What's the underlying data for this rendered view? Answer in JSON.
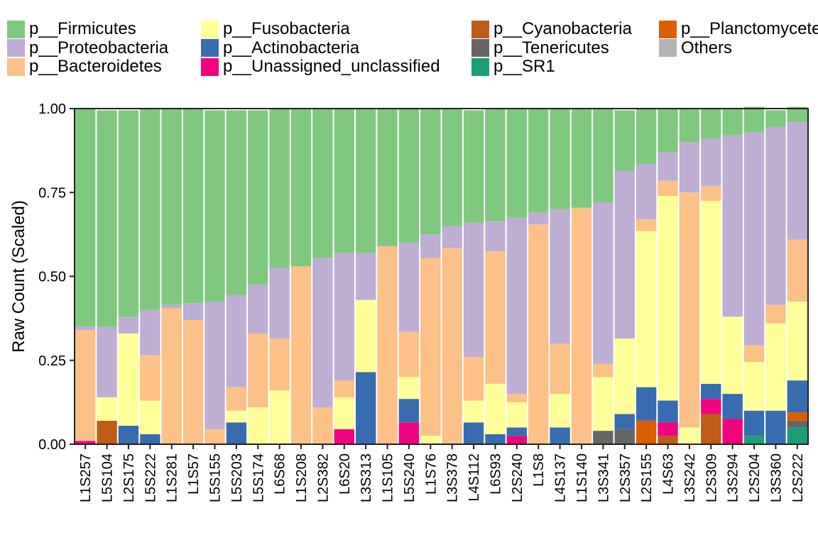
{
  "chart_data": {
    "type": "bar",
    "stacked": true,
    "title": "",
    "xlabel": "",
    "ylabel": "Raw Count (Scaled)",
    "ylim": [
      0,
      1
    ],
    "y_ticks": [
      "0.00",
      "0.25",
      "0.50",
      "0.75",
      "1.00"
    ],
    "grid": false,
    "legend_position": "top",
    "categories": [
      "L1S257",
      "L5S104",
      "L2S175",
      "L5S222",
      "L1S281",
      "L1S57",
      "L5S155",
      "L5S203",
      "L5S174",
      "L6S68",
      "L1S208",
      "L2S382",
      "L6S20",
      "L3S313",
      "L1S105",
      "L5S240",
      "L1S76",
      "L3S378",
      "L4S112",
      "L6S93",
      "L2S240",
      "L1S8",
      "L4S137",
      "L1S140",
      "L3S341",
      "L2S357",
      "L2S155",
      "L4S63",
      "L3S242",
      "L2S309",
      "L3S294",
      "L2S204",
      "L3S360",
      "L2S222"
    ],
    "series": [
      {
        "name": "p__Firmicutes",
        "color": "#7fc97f",
        "values": [
          0.65,
          0.645,
          0.615,
          0.6,
          0.585,
          0.58,
          0.57,
          0.55,
          0.52,
          0.475,
          0.47,
          0.445,
          0.43,
          0.43,
          0.41,
          0.4,
          0.375,
          0.35,
          0.335,
          0.335,
          0.325,
          0.31,
          0.3,
          0.295,
          0.28,
          0.18,
          0.165,
          0.13,
          0.1,
          0.09,
          0.08,
          0.075,
          0.05,
          0.045
        ]
      },
      {
        "name": "p__Proteobacteria",
        "color": "#beaed4",
        "values": [
          0.01,
          0.21,
          0.05,
          0.135,
          0.01,
          0.05,
          0.38,
          0.275,
          0.145,
          0.21,
          0,
          0.445,
          0.38,
          0.14,
          0,
          0.265,
          0.07,
          0.065,
          0.4,
          0.09,
          0.525,
          0.035,
          0.4,
          0,
          0.48,
          0.5,
          0.165,
          0.085,
          0.15,
          0.14,
          0.54,
          0.635,
          0.53,
          0.35
        ]
      },
      {
        "name": "p__Bacteroidetes",
        "color": "#fdc086",
        "values": [
          0.33,
          0,
          0,
          0.135,
          0.405,
          0.37,
          0.045,
          0.07,
          0.22,
          0.155,
          0.53,
          0.11,
          0.05,
          0,
          0.59,
          0.135,
          0.53,
          0.585,
          0.13,
          0.395,
          0.025,
          0.655,
          0.15,
          0.705,
          0.04,
          0,
          0.035,
          0.045,
          0.7,
          0.045,
          0,
          0.05,
          0.055,
          0.185
        ]
      },
      {
        "name": "p__Fusobacteria",
        "color": "#ffff99",
        "values": [
          0,
          0.07,
          0.275,
          0.1,
          0,
          0,
          0,
          0.035,
          0.11,
          0.16,
          0,
          0,
          0.095,
          0.215,
          0,
          0.065,
          0.025,
          0,
          0.065,
          0.15,
          0.075,
          0,
          0.1,
          0,
          0.16,
          0.225,
          0.465,
          0.61,
          0.05,
          0.545,
          0.23,
          0.145,
          0.26,
          0.235
        ]
      },
      {
        "name": "p__Actinobacteria",
        "color": "#386cb0",
        "values": [
          0,
          0,
          0.055,
          0.03,
          0,
          0,
          0,
          0.065,
          0,
          0,
          0,
          0,
          0,
          0.215,
          0,
          0.07,
          0,
          0,
          0.065,
          0.03,
          0.025,
          0,
          0.05,
          0,
          0,
          0.045,
          0.1,
          0.065,
          0,
          0.045,
          0.075,
          0.075,
          0.1,
          0.095
        ]
      },
      {
        "name": "p__Unassigned_unclassified",
        "color": "#f0027f",
        "values": [
          0.01,
          0,
          0,
          0,
          0,
          0,
          0,
          0,
          0,
          0,
          0,
          0,
          0.045,
          0,
          0,
          0.065,
          0,
          0,
          0,
          0,
          0.025,
          0,
          0,
          0,
          0,
          0,
          0,
          0.04,
          0,
          0.045,
          0.075,
          0,
          0,
          0
        ]
      },
      {
        "name": "p__Cyanobacteria",
        "color": "#bf5b17",
        "values": [
          0,
          0.07,
          0,
          0,
          0,
          0,
          0,
          0,
          0,
          0,
          0,
          0,
          0,
          0,
          0,
          0,
          0,
          0,
          0,
          0,
          0,
          0,
          0,
          0,
          0,
          0,
          0,
          0.025,
          0,
          0.09,
          0,
          0,
          0,
          0
        ]
      },
      {
        "name": "p__Tenericutes",
        "color": "#666666",
        "values": [
          0,
          0,
          0,
          0,
          0,
          0,
          0,
          0,
          0,
          0,
          0,
          0,
          0,
          0,
          0,
          0,
          0,
          0,
          0,
          0,
          0,
          0,
          0,
          0,
          0.04,
          0.045,
          0,
          0,
          0,
          0,
          0,
          0,
          0,
          0.02
        ]
      },
      {
        "name": "p__SR1",
        "color": "#1b9e77",
        "values": [
          0,
          0,
          0,
          0,
          0,
          0,
          0,
          0,
          0,
          0,
          0,
          0,
          0,
          0,
          0,
          0,
          0,
          0,
          0,
          0,
          0,
          0,
          0,
          0,
          0,
          0,
          0,
          0,
          0,
          0,
          0,
          0.025,
          0,
          0.05
        ]
      },
      {
        "name": "p__Planctomycetes",
        "color": "#d95f02",
        "values": [
          0,
          0,
          0,
          0,
          0,
          0,
          0,
          0,
          0,
          0,
          0,
          0,
          0,
          0,
          0,
          0,
          0,
          0,
          0,
          0,
          0,
          0,
          0,
          0,
          0,
          0,
          0.07,
          0,
          0,
          0,
          0,
          0,
          0,
          0.025
        ]
      },
      {
        "name": "Others",
        "color": "#b3b3b3",
        "values": [
          0,
          0,
          0,
          0,
          0,
          0,
          0,
          0,
          0,
          0,
          0,
          0,
          0,
          0,
          0,
          0,
          0,
          0,
          0,
          0,
          0,
          0,
          0,
          0,
          0,
          0,
          0,
          0,
          0,
          0,
          0,
          0,
          0,
          0
        ]
      }
    ],
    "stack_order_bottom_to_top": [
      "p__SR1",
      "p__Tenericutes",
      "p__Cyanobacteria",
      "p__Planctomycetes",
      "p__Unassigned_unclassified",
      "p__Actinobacteria",
      "p__Fusobacteria",
      "p__Bacteroidetes",
      "p__Proteobacteria",
      "p__Firmicutes"
    ],
    "legend": {
      "columns": [
        [
          "p__Firmicutes",
          "p__Proteobacteria",
          "p__Bacteroidetes"
        ],
        [
          "p__Fusobacteria",
          "p__Actinobacteria",
          "p__Unassigned_unclassified"
        ],
        [
          "p__Cyanobacteria",
          "p__Tenericutes",
          "p__SR1"
        ],
        [
          "p__Planctomycetes",
          "Others"
        ]
      ]
    }
  }
}
